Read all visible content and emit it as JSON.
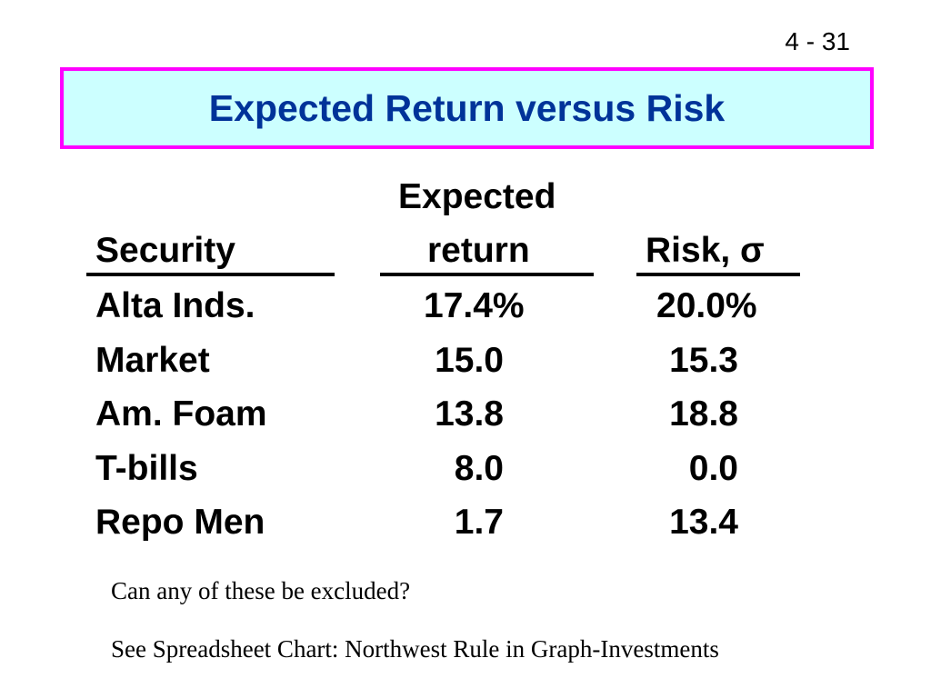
{
  "slide": {
    "number": "4 - 31",
    "title": "Expected Return versus Risk"
  },
  "table": {
    "headers": {
      "security": "Security",
      "expected_line1": "Expected",
      "expected_line2": "return",
      "risk": "Risk, σ"
    },
    "rows": [
      {
        "security": "Alta Inds.",
        "expected_return": "17.4%",
        "risk": "20.0%"
      },
      {
        "security": "Market",
        "expected_return": "15.0",
        "risk": "15.3"
      },
      {
        "security": "Am. Foam",
        "expected_return": "13.8",
        "risk": "18.8"
      },
      {
        "security": "T-bills",
        "expected_return": "8.0",
        "risk": "0.0"
      },
      {
        "security": "Repo Men",
        "expected_return": "1.7",
        "risk": "13.4"
      }
    ]
  },
  "notes": {
    "question": "Can any of these be excluded?",
    "reference": "See Spreadsheet Chart:  Northwest Rule in Graph-Investments"
  },
  "colors": {
    "title_text": "#003399",
    "title_background": "#ccffff",
    "title_border": "#ff00ff"
  }
}
